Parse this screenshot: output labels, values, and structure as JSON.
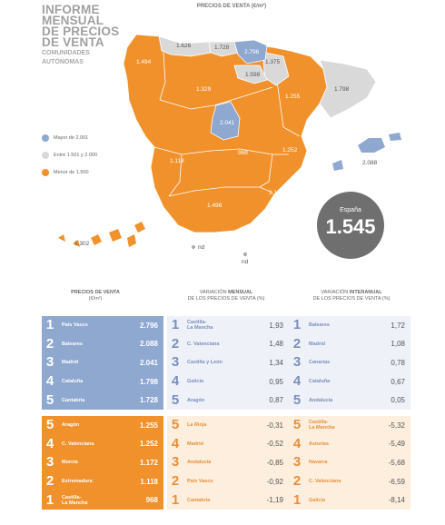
{
  "title": {
    "lines": [
      "INFORME",
      "MENSUAL",
      "DE PRECIOS",
      "DE VENTA"
    ],
    "subtitle_lines": [
      "COMUNIDADES",
      "AUTÓNOMAS"
    ]
  },
  "map": {
    "title": "PRECIOS DE VENTA (€/m²)",
    "colors": {
      "high": "#8ea8d0",
      "mid": "#d9d9d9",
      "low": "#f0912c"
    },
    "labels": {
      "galicia": "1.494",
      "asturias": "1.626",
      "cantabria": "1.728",
      "pais_vasco": "2.796",
      "navarra": "1.375",
      "la_rioja": "1.598",
      "aragon": "1.255",
      "cataluna": "1.798",
      "castilla_leon": "1.329",
      "madrid": "2.041",
      "castilla_la_mancha": "968",
      "c_valenciana": "1.252",
      "extremadura": "1.118",
      "murcia": "1.172",
      "andalucia": "1.496",
      "baleares": "2.088",
      "canarias": "1.302",
      "ceuta": "nd",
      "melilla": "nd"
    }
  },
  "legend": [
    {
      "label": "Mayor de 2.001",
      "color": "#8ea8d0"
    },
    {
      "label": "Entre 1.501 y 2.000",
      "color": "#d9d9d9"
    },
    {
      "label": "Menor de 1.500",
      "color": "#f0912c"
    }
  ],
  "espana": {
    "label": "España",
    "value": "1.545"
  },
  "columns": {
    "precios": {
      "line1": "PRECIOS DE VENTA",
      "line2": "(€/m²)"
    },
    "mensual": {
      "pre": "VARIACIÓN ",
      "bold": "MENSUAL",
      "line2": "DE LOS PRECIOS DE VENTA (%)"
    },
    "interanual": {
      "pre": "VARIACIÓN ",
      "bold": "INTERANUAL",
      "line2": "DE LOS PRECIOS DE VENTA (%)"
    }
  },
  "precios_top": [
    {
      "rank": "1",
      "name": "País Vasco",
      "value": "2.796"
    },
    {
      "rank": "2",
      "name": "Baleares",
      "value": "2.088"
    },
    {
      "rank": "3",
      "name": "Madrid",
      "value": "2.041"
    },
    {
      "rank": "4",
      "name": "Cataluña",
      "value": "1.798"
    },
    {
      "rank": "5",
      "name": "Cantabria",
      "value": "1.728"
    }
  ],
  "precios_bottom": [
    {
      "rank": "5",
      "name": "Aragón",
      "value": "1.255"
    },
    {
      "rank": "4",
      "name": "C. Valenciana",
      "value": "1.252"
    },
    {
      "rank": "3",
      "name": "Murcia",
      "value": "1.172"
    },
    {
      "rank": "2",
      "name": "Extremadura",
      "value": "1.118"
    },
    {
      "rank": "1",
      "name": "Castilla-\nLa Mancha",
      "value": "968"
    }
  ],
  "mensual_top": [
    {
      "rank": "1",
      "name": "Castilla-\nLa Mancha",
      "value": "1,93"
    },
    {
      "rank": "2",
      "name": "C. Valenciana",
      "value": "1,48"
    },
    {
      "rank": "3",
      "name": "Castilla y León",
      "value": "1,34"
    },
    {
      "rank": "4",
      "name": "Galicia",
      "value": "0,95"
    },
    {
      "rank": "5",
      "name": "Aragón",
      "value": "0,87"
    }
  ],
  "mensual_bottom": [
    {
      "rank": "5",
      "name": "La Rioja",
      "value": "-0,31"
    },
    {
      "rank": "4",
      "name": "Madrid",
      "value": "-0,52"
    },
    {
      "rank": "3",
      "name": "Andalucía",
      "value": "-0,85"
    },
    {
      "rank": "2",
      "name": "País Vasco",
      "value": "-0,92"
    },
    {
      "rank": "1",
      "name": "Cantabria",
      "value": "-1,19"
    }
  ],
  "interanual_top": [
    {
      "rank": "1",
      "name": "Baleares",
      "value": "1,72"
    },
    {
      "rank": "2",
      "name": "Madrid",
      "value": "1,08"
    },
    {
      "rank": "3",
      "name": "Canarias",
      "value": "0,78"
    },
    {
      "rank": "4",
      "name": "Cataluña",
      "value": "0,67"
    },
    {
      "rank": "5",
      "name": "Andalucía",
      "value": "0,05"
    }
  ],
  "interanual_bottom": [
    {
      "rank": "5",
      "name": "Castilla-\nLa Mancha",
      "value": "-5,32"
    },
    {
      "rank": "4",
      "name": "Asturias",
      "value": "-5,49"
    },
    {
      "rank": "3",
      "name": "Navarra",
      "value": "-5,68"
    },
    {
      "rank": "2",
      "name": "C. Valenciana",
      "value": "-6,59"
    },
    {
      "rank": "1",
      "name": "Galicia",
      "value": "-8,14"
    }
  ]
}
